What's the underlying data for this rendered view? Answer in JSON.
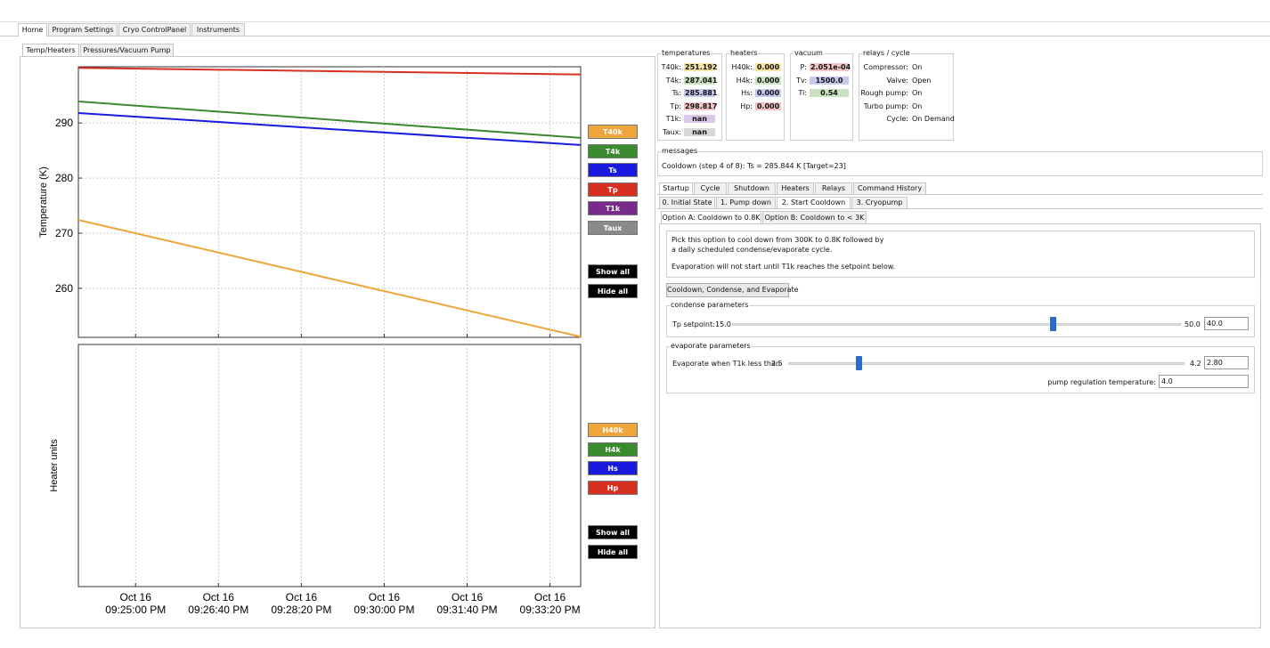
{
  "main_tabs": [
    "Home",
    "Program Settings",
    "Cryo ControlPanel",
    "Instruments"
  ],
  "plot_tabs": [
    "Temp/Heaters",
    "Pressures/Vacuum Pump"
  ],
  "temperature_plot": {
    "type": "line",
    "y_label": "Temperature (K)",
    "x": [
      "21:23:51",
      "21:33:57"
    ],
    "xlim": [
      "21:23:51",
      "21:33:57"
    ],
    "xticks": [
      {
        "value": "21:25:00",
        "date": "Oct 16",
        "label": "09:25:00 PM"
      },
      {
        "value": "21:26:40",
        "date": "Oct 16",
        "label": "09:26:40 PM"
      },
      {
        "value": "21:28:20",
        "date": "Oct 16",
        "label": "09:28:20 PM"
      },
      {
        "value": "21:30:00",
        "date": "Oct 16",
        "label": "09:30:00 PM"
      },
      {
        "value": "21:31:40",
        "date": "Oct 16",
        "label": "09:31:40 PM"
      },
      {
        "value": "21:33:20",
        "date": "Oct 16",
        "label": "09:33:20 PM"
      }
    ],
    "ylim": [
      251.1,
      300.2
    ],
    "yticks": [
      260,
      270,
      280,
      290
    ],
    "grid": true,
    "series": [
      {
        "name": "T40k",
        "color": "#eea53a",
        "values": [
          272.4,
          251.2
        ]
      },
      {
        "name": "T4k",
        "color": "#3a8a2e",
        "values": [
          293.9,
          287.3
        ]
      },
      {
        "name": "Ts",
        "color": "#1a1adf",
        "values": [
          291.8,
          286.0
        ]
      },
      {
        "name": "Tp",
        "color": "#d83020",
        "values": [
          300.0,
          298.8
        ]
      },
      {
        "name": "T1k",
        "color": "#7a2a8a",
        "values": [
          null,
          null
        ]
      },
      {
        "name": "Taux",
        "color": "#8a8a8a",
        "values": [
          null,
          null
        ]
      }
    ],
    "show_all": "Show all",
    "hide_all": "Hide all"
  },
  "heater_plot": {
    "y_label": "Heater units",
    "buttons": [
      {
        "name": "H40k",
        "color": "#eea53a"
      },
      {
        "name": "H4k",
        "color": "#3a8a2e"
      },
      {
        "name": "Hs",
        "color": "#1a1adf"
      },
      {
        "name": "Hp",
        "color": "#d83020"
      }
    ],
    "show_all": "Show all",
    "hide_all": "Hide all"
  },
  "status": {
    "temperatures": {
      "title": "temperatures",
      "rows": [
        {
          "label": "T40k:",
          "value": "251.192",
          "color": "#f5e6a3"
        },
        {
          "label": "T4k:",
          "value": "287.041",
          "color": "#c9e3c0"
        },
        {
          "label": "Ts:",
          "value": "285.881",
          "color": "#c7c8f0"
        },
        {
          "label": "Tp:",
          "value": "298.817",
          "color": "#f0c4c4"
        },
        {
          "label": "T1k:",
          "value": "nan",
          "color": "#dcc8e8"
        },
        {
          "label": "Taux:",
          "value": "nan",
          "color": "#d8d8d8"
        }
      ]
    },
    "heaters": {
      "title": "heaters",
      "rows": [
        {
          "label": "H40k:",
          "value": "0.000",
          "color": "#f5e6a3"
        },
        {
          "label": "H4k:",
          "value": "0.000",
          "color": "#c9e3c0"
        },
        {
          "label": "Hs:",
          "value": "0.000",
          "color": "#c7c8f0"
        },
        {
          "label": "Hp:",
          "value": "0.000",
          "color": "#f0c4c4"
        }
      ]
    },
    "vacuum": {
      "title": "vacuum",
      "rows": [
        {
          "label": "P:",
          "value": "2.051e-04",
          "color": "#f0c4c4"
        },
        {
          "label": "Tv:",
          "value": "1500.0",
          "color": "#c7c8f0"
        },
        {
          "label": "Ti:",
          "value": "0.54",
          "color": "#c9e3c0"
        }
      ]
    },
    "relays": {
      "title": "relays / cycle",
      "rows": [
        {
          "label": "Compressor:",
          "value": "On"
        },
        {
          "label": "Valve:",
          "value": "Open"
        },
        {
          "label": "Rough pump:",
          "value": "On"
        },
        {
          "label": "Turbo pump:",
          "value": "On"
        },
        {
          "label": "Cycle:",
          "value": "On Demand"
        }
      ]
    }
  },
  "messages": {
    "title": "messages",
    "text": "Cooldown (step 4 of 8): Ts = 285.844 K  [Target=23]"
  },
  "control_tabs": [
    "Startup",
    "Cycle",
    "Shutdown",
    "Heaters",
    "Relays",
    "Command History"
  ],
  "step_tabs": [
    "0. Initial State",
    "1. Pump down",
    "2. Start Cooldown",
    "3. Cryopump"
  ],
  "option_tabs": [
    "Option A: Cooldown to 0.8K",
    "Option B: Cooldown to < 3K"
  ],
  "description": [
    "Pick this option to cool down from 300K to 0.8K followed by",
    "a daily scheduled condense/evaporate cycle.",
    "Evaporation will not start until T1k reaches the setpoint below."
  ],
  "action_button": "Cooldown, Condense, and Evaporate",
  "condense": {
    "title": "condense parameters",
    "label": "Tp setpoint:",
    "min": 15.0,
    "min_label": "15.0",
    "max": 50.0,
    "max_label": "50.0",
    "value": 40.0,
    "value_label": "40.0"
  },
  "evaporate": {
    "title": "evaporate parameters",
    "label": "Evaporate when T1k less than",
    "min": 2.5,
    "max": 4.2,
    "value": 2.8,
    "value_label": "2.80",
    "pump_label": "pump regulation temperature:",
    "pump_value": "4.0"
  }
}
